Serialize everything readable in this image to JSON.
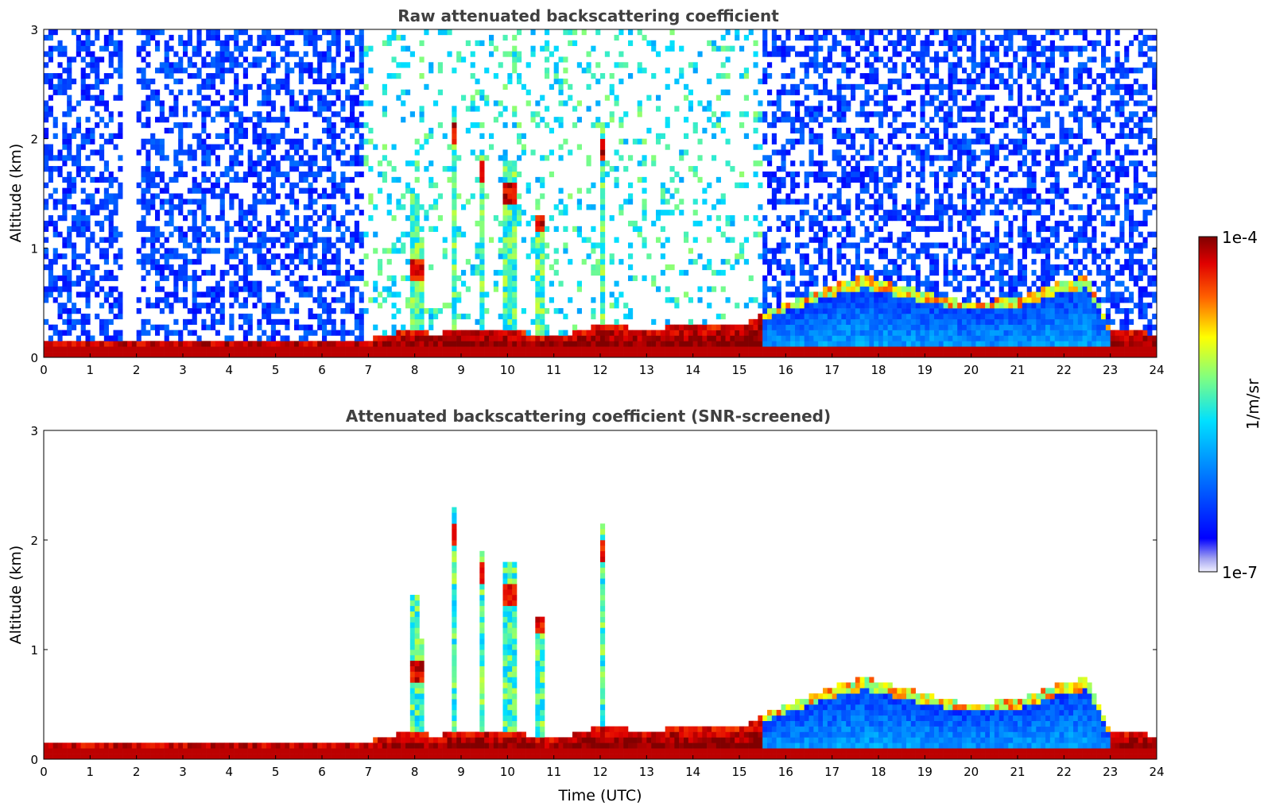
{
  "chart_data": [
    {
      "type": "heatmap",
      "title": "Raw attenuated backscattering coefficient",
      "xlabel": "",
      "ylabel": "Altitude (km)",
      "xlim": [
        0,
        24
      ],
      "ylim": [
        0,
        3
      ],
      "xticks": [
        "0",
        "1",
        "2",
        "3",
        "4",
        "5",
        "6",
        "7",
        "8",
        "9",
        "10",
        "11",
        "12",
        "13",
        "14",
        "15",
        "16",
        "17",
        "18",
        "19",
        "20",
        "21",
        "22",
        "23",
        "24"
      ],
      "yticks": [
        "0",
        "1",
        "2",
        "3"
      ],
      "colorscale": "log",
      "noise_floor": true,
      "cloud_columns": [
        {
          "t": 8.0,
          "top": 1.5,
          "peak": 0.8,
          "w": 0.12
        },
        {
          "t": 8.2,
          "top": 1.1,
          "peak": 0.8,
          "w": 0.1
        },
        {
          "t": 8.85,
          "top": 2.3,
          "peak": 2.05,
          "w": 0.15
        },
        {
          "t": 9.45,
          "top": 1.9,
          "peak": 1.7,
          "w": 0.06
        },
        {
          "t": 10.05,
          "top": 1.8,
          "peak": 1.5,
          "w": 0.32
        },
        {
          "t": 10.7,
          "top": 1.3,
          "peak": 1.25,
          "w": 0.12
        },
        {
          "t": 12.05,
          "top": 2.15,
          "peak": 1.9,
          "w": 0.07
        }
      ],
      "layer_top_profile": [
        [
          0,
          0.14
        ],
        [
          1.6,
          0.15
        ],
        [
          2,
          0.16
        ],
        [
          7,
          0.16
        ],
        [
          7.8,
          0.24
        ],
        [
          8.5,
          0.22
        ],
        [
          9,
          0.26
        ],
        [
          10,
          0.25
        ],
        [
          11,
          0.18
        ],
        [
          12,
          0.3
        ],
        [
          13,
          0.26
        ],
        [
          14,
          0.3
        ],
        [
          15,
          0.28
        ],
        [
          15.5,
          0.4
        ],
        [
          16,
          0.5
        ],
        [
          17,
          0.66
        ],
        [
          17.7,
          0.75
        ],
        [
          19,
          0.6
        ],
        [
          20,
          0.5
        ],
        [
          21,
          0.55
        ],
        [
          22,
          0.7
        ],
        [
          22.5,
          0.75
        ],
        [
          23,
          0.25
        ],
        [
          24,
          0.22
        ]
      ]
    },
    {
      "type": "heatmap",
      "title": "Attenuated backscattering coefficient (SNR-screened)",
      "xlabel": "Time (UTC)",
      "ylabel": "Altitude (km)",
      "xlim": [
        0,
        24
      ],
      "ylim": [
        0,
        3
      ],
      "xticks": [
        "0",
        "1",
        "2",
        "3",
        "4",
        "5",
        "6",
        "7",
        "8",
        "9",
        "10",
        "11",
        "12",
        "13",
        "14",
        "15",
        "16",
        "17",
        "18",
        "19",
        "20",
        "21",
        "22",
        "23",
        "24"
      ],
      "yticks": [
        "0",
        "1",
        "2",
        "3"
      ],
      "colorscale": "log",
      "noise_floor": false
    }
  ],
  "colorbar": {
    "label": "1/m/sr",
    "max_label": "1e-4",
    "min_label": "1e-7",
    "colormap": "jet",
    "colors": [
      "#e8e8f8",
      "#b0b0f0",
      "#7070f0",
      "#0000ff",
      "#0050ff",
      "#00a0ff",
      "#00ffff",
      "#80ff80",
      "#ffff00",
      "#ff8000",
      "#ff0000",
      "#800000"
    ]
  }
}
